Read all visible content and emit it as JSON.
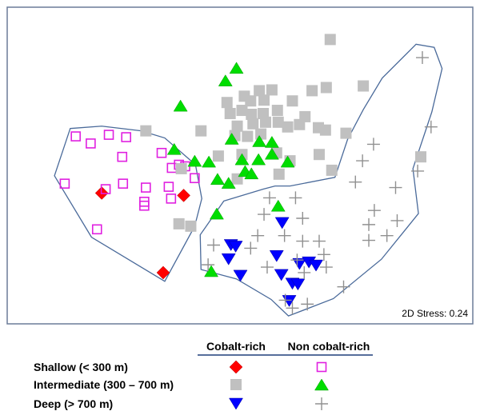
{
  "chart_data": {
    "type": "scatter",
    "annotation": "2D Stress: 0.24",
    "legend": {
      "columns": [
        "Cobalt-rich",
        "Non cobalt-rich"
      ],
      "rows": [
        {
          "label": "Shallow (< 300 m)",
          "cobalt_rich": "red-diamond",
          "non_cobalt_rich": "magenta-open-square"
        },
        {
          "label": "Intermediate (300 – 700 m)",
          "cobalt_rich": "gray-square",
          "non_cobalt_rich": "green-triangle"
        },
        {
          "label": "Deep (> 700 m)",
          "cobalt_rich": "blue-down-triangle",
          "non_cobalt_rich": "gray-plus"
        }
      ]
    },
    "colors": {
      "red_diamond": "#ff0000",
      "magenta_square": "#e020e0",
      "gray_square": "#c0c0c0",
      "green_triangle": "#00dd00",
      "blue_triangle": "#0000ff",
      "gray_plus": "#909090",
      "hull": "#4a6a9a"
    },
    "xlim": [
      0,
      591
    ],
    "ylim": [
      0,
      402
    ],
    "series": [
      {
        "marker": "red-diamond",
        "points": [
          [
            120,
            236
          ],
          [
            224,
            239
          ],
          [
            198,
            337
          ]
        ]
      },
      {
        "marker": "magenta-open-square",
        "points": [
          [
            87,
            164
          ],
          [
            129,
            162
          ],
          [
            151,
            165
          ],
          [
            106,
            173
          ],
          [
            146,
            190
          ],
          [
            196,
            185
          ],
          [
            209,
            204
          ],
          [
            218,
            200
          ],
          [
            226,
            202
          ],
          [
            238,
            217
          ],
          [
            147,
            224
          ],
          [
            176,
            229
          ],
          [
            205,
            228
          ],
          [
            208,
            243
          ],
          [
            174,
            247
          ],
          [
            73,
            224
          ],
          [
            125,
            231
          ],
          [
            174,
            252
          ],
          [
            114,
            282
          ]
        ]
      },
      {
        "marker": "gray-square",
        "points": [
          [
            410,
            41
          ],
          [
            320,
            106
          ],
          [
            336,
            105
          ],
          [
            387,
            106
          ],
          [
            405,
            102
          ],
          [
            452,
            100
          ],
          [
            279,
            121
          ],
          [
            301,
            113
          ],
          [
            309,
            119
          ],
          [
            326,
            118
          ],
          [
            283,
            135
          ],
          [
            298,
            131
          ],
          [
            310,
            136
          ],
          [
            325,
            135
          ],
          [
            343,
            131
          ],
          [
            362,
            119
          ],
          [
            378,
            139
          ],
          [
            292,
            151
          ],
          [
            312,
            148
          ],
          [
            328,
            146
          ],
          [
            344,
            146
          ],
          [
            356,
            152
          ],
          [
            371,
            149
          ],
          [
            176,
            157
          ],
          [
            246,
            157
          ],
          [
            289,
            163
          ],
          [
            305,
            164
          ],
          [
            322,
            161
          ],
          [
            395,
            153
          ],
          [
            404,
            156
          ],
          [
            430,
            160
          ],
          [
            268,
            189
          ],
          [
            298,
            187
          ],
          [
            342,
            185
          ],
          [
            359,
            195
          ],
          [
            396,
            187
          ],
          [
            525,
            190
          ],
          [
            221,
            205
          ],
          [
            292,
            218
          ],
          [
            345,
            212
          ],
          [
            412,
            207
          ],
          [
            218,
            275
          ],
          [
            233,
            278
          ]
        ]
      },
      {
        "marker": "green-triangle",
        "points": [
          [
            291,
            77
          ],
          [
            277,
            93
          ],
          [
            220,
            125
          ],
          [
            285,
            167
          ],
          [
            212,
            180
          ],
          [
            320,
            170
          ],
          [
            336,
            171
          ],
          [
            336,
            186
          ],
          [
            238,
            195
          ],
          [
            256,
            196
          ],
          [
            298,
            193
          ],
          [
            319,
            193
          ],
          [
            356,
            196
          ],
          [
            267,
            218
          ],
          [
            281,
            223
          ],
          [
            302,
            208
          ],
          [
            310,
            211
          ],
          [
            344,
            252
          ],
          [
            266,
            262
          ],
          [
            259,
            335
          ]
        ]
      },
      {
        "marker": "blue-down-triangle",
        "points": [
          [
            349,
            274
          ],
          [
            284,
            302
          ],
          [
            290,
            304
          ],
          [
            281,
            320
          ],
          [
            342,
            316
          ],
          [
            371,
            326
          ],
          [
            383,
            324
          ],
          [
            392,
            328
          ],
          [
            348,
            340
          ],
          [
            296,
            341
          ],
          [
            362,
            351
          ],
          [
            369,
            352
          ],
          [
            358,
            373
          ]
        ]
      },
      {
        "marker": "gray-plus",
        "points": [
          [
            527,
            64
          ],
          [
            538,
            152
          ],
          [
            465,
            174
          ],
          [
            451,
            195
          ],
          [
            521,
            208
          ],
          [
            442,
            222
          ],
          [
            493,
            229
          ],
          [
            333,
            242
          ],
          [
            366,
            242
          ],
          [
            466,
            258
          ],
          [
            326,
            263
          ],
          [
            375,
            268
          ],
          [
            495,
            271
          ],
          [
            459,
            276
          ],
          [
            482,
            290
          ],
          [
            459,
            296
          ],
          [
            318,
            290
          ],
          [
            352,
            290
          ],
          [
            375,
            297
          ],
          [
            396,
            297
          ],
          [
            262,
            302
          ],
          [
            309,
            306
          ],
          [
            402,
            314
          ],
          [
            368,
            321
          ],
          [
            255,
            327
          ],
          [
            330,
            330
          ],
          [
            405,
            330
          ],
          [
            377,
            337
          ],
          [
            427,
            355
          ],
          [
            353,
            372
          ],
          [
            381,
            377
          ],
          [
            362,
            382
          ]
        ]
      }
    ],
    "hulls": [
      [
        [
          80,
          154
        ],
        [
          120,
          151
        ],
        [
          170,
          157
        ],
        [
          200,
          166
        ],
        [
          239,
          200
        ],
        [
          247,
          243
        ],
        [
          238,
          278
        ],
        [
          200,
          348
        ],
        [
          107,
          292
        ],
        [
          60,
          214
        ]
      ],
      [
        [
          275,
          246
        ],
        [
          325,
          231
        ],
        [
          340,
          227
        ],
        [
          359,
          227
        ],
        [
          416,
          216
        ],
        [
          432,
          168
        ],
        [
          452,
          130
        ],
        [
          476,
          90
        ],
        [
          519,
          47
        ],
        [
          542,
          51
        ],
        [
          552,
          78
        ],
        [
          539,
          133
        ],
        [
          515,
          205
        ],
        [
          522,
          262
        ],
        [
          475,
          320
        ],
        [
          414,
          370
        ],
        [
          357,
          392
        ],
        [
          335,
          371
        ],
        [
          291,
          345
        ],
        [
          246,
          333
        ],
        [
          245,
          289
        ]
      ]
    ]
  }
}
